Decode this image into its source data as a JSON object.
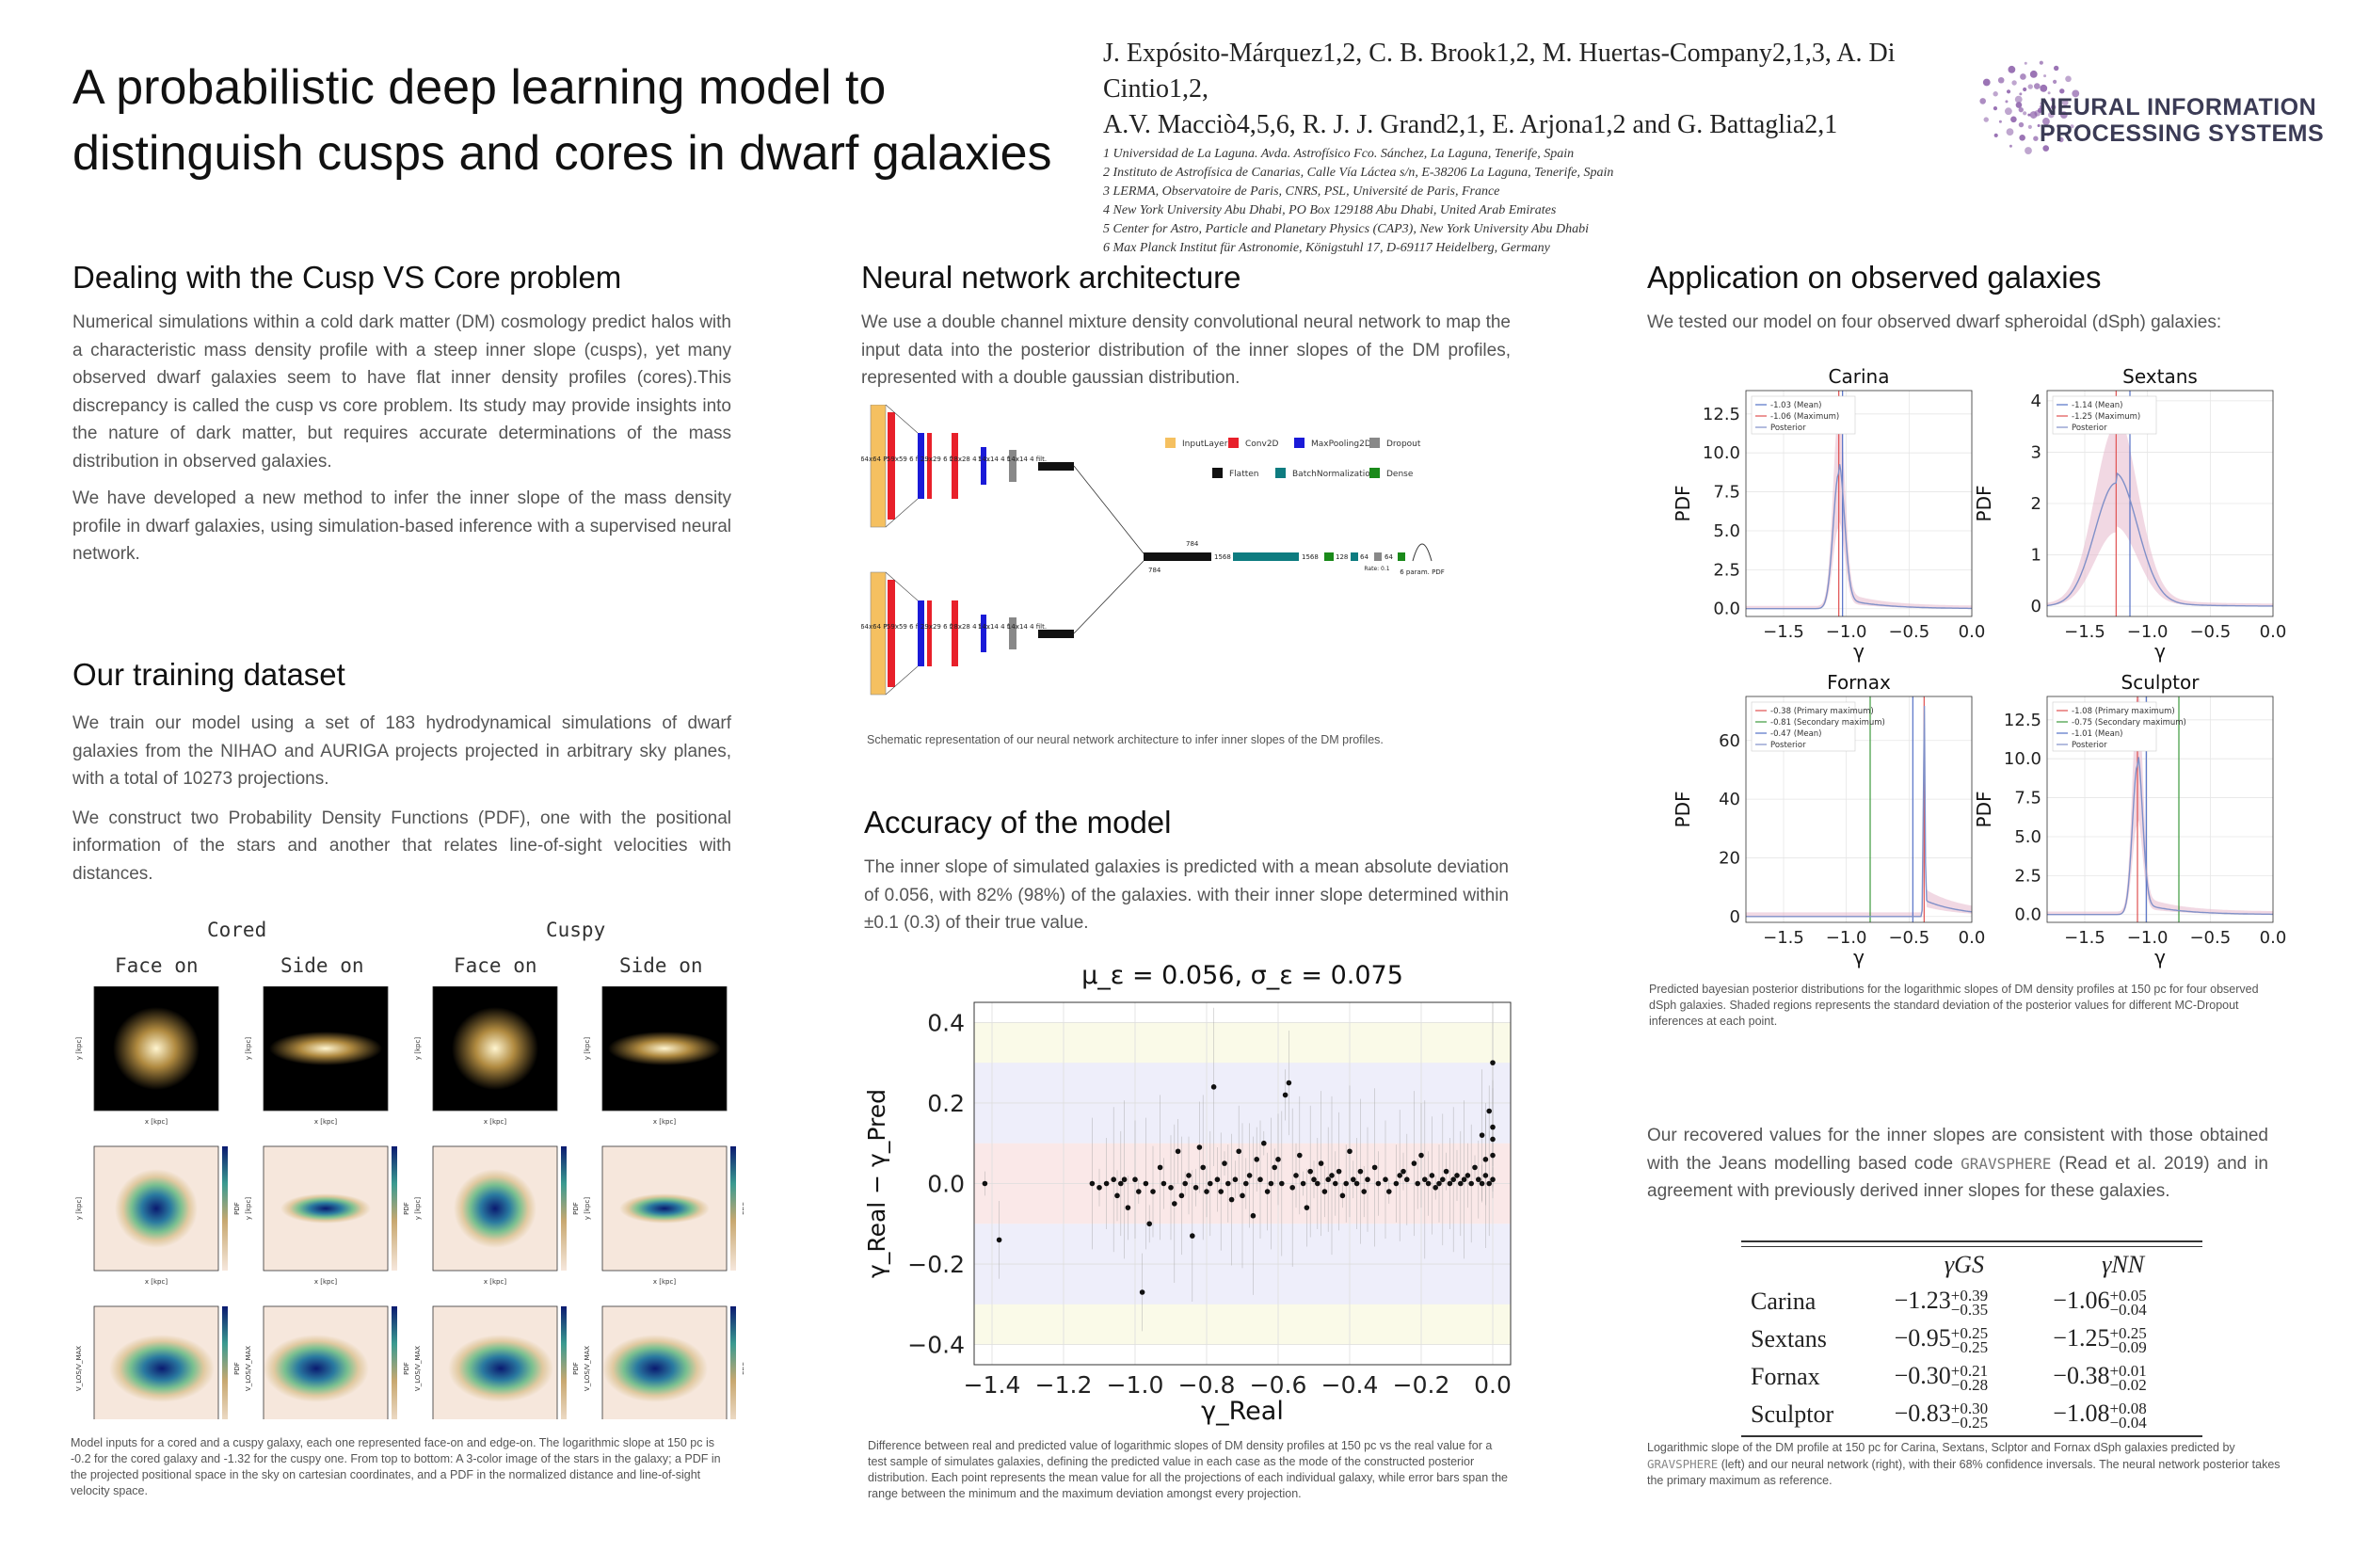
{
  "header": {
    "title_line1": "A probabilistic deep learning model to",
    "title_line2": "distinguish cusps and cores in dwarf galaxies",
    "authors_line1": "J. Expósito-Márquez1,2, C. B. Brook1,2, M. Huertas-Company2,1,3, A. Di Cintio1,2,",
    "authors_line2": "A.V. Macciò4,5,6, R. J. J. Grand2,1, E. Arjona1,2 and G. Battaglia2,1",
    "affiliations": [
      "1 Universidad de La Laguna. Avda. Astrofísico Fco. Sánchez, La Laguna, Tenerife, Spain",
      "2 Instituto de Astrofísica de Canarias, Calle Vía Láctea s/n, E-38206 La Laguna, Tenerife, Spain",
      "3 LERMA, Observatoire de Paris, CNRS, PSL, Université de Paris, France",
      "4 New York University Abu Dhabi, PO Box 129188 Abu Dhabi, United Arab Emirates",
      "5 Center for Astro, Particle and Planetary Physics (CAP3), New York University Abu Dhabi",
      "6 Max Planck Institut für Astronomie, Königstuhl 17, D-69117 Heidelberg, Germany"
    ],
    "logo_line1": "NEURAL INFORMATION",
    "logo_line2": "PROCESSING SYSTEMS",
    "logo_color": "#8a5ca8"
  },
  "cusp_core": {
    "heading": "Dealing with the Cusp VS Core problem",
    "p1": "Numerical simulations within a cold dark matter (DM) cosmology predict halos with a characteristic mass density profile with a steep inner slope (cusps), yet many observed dwarf galaxies seem to have flat inner density profiles (cores).This discrepancy is called the cusp vs core problem. Its study may provide insights into the nature of dark matter, but requires accurate determinations of the mass distribution in observed galaxies.",
    "p2": "We have developed a new method to infer the inner slope of the mass density profile in dwarf galaxies, using simulation-based inference with a supervised neural network."
  },
  "training": {
    "heading": "Our training dataset",
    "p1": "We train our model using a set of 183 hydrodynamical simulations of dwarf galaxies from the NIHAO and AURIGA projects projected in arbitrary sky planes, with a total of 10273 projections.",
    "p2": "We construct two Probability Density Functions (PDF), one with the positional information of the stars and another that relates line-of-sight velocities with distances.",
    "cored_label": "Cored",
    "cuspy_label": "Cuspy",
    "face_on": "Face on",
    "side_on": "Side on",
    "ylabel_pos": "y [kpc]",
    "xlabel_pos": "x [kpc]",
    "ylabel_vel": "V_LOS/V_MAX",
    "xlabel_vel": "R_proj/R_1/2",
    "cbar_label": "PDF",
    "caption": "Model inputs for a cored and a cuspy galaxy, each one represented face-on and edge-on. The logarithmic slope at 150 pc is -0.2 for the cored galaxy and -1.32 for the cuspy one. From top to bottom: A 3-color image of the stars in the galaxy; a PDF in the projected positional space in the sky on cartesian coordinates, and a PDF in the normalized distance and line-of-sight velocity space."
  },
  "architecture": {
    "heading": "Neural network architecture",
    "p1": "We use a double channel mixture density convolutional neural network to map the input data into the posterior distribution of the inner slopes of the DM profiles, represented with a double gaussian distribution.",
    "legend": [
      "InputLayer",
      "Conv2D",
      "MaxPooling2D",
      "Dropout",
      "Flatten",
      "BatchNormalization",
      "Dense"
    ],
    "legend_colors": [
      "#f5c060",
      "#e8202a",
      "#1a1ad8",
      "#888888",
      "#111111",
      "#0e7c80",
      "#1a8a1a"
    ],
    "block_input": "64x64 PDF",
    "block_conv1": "59x59 6 filt.",
    "block_conv2": "29x29 6 filt.",
    "block_conv3": "28x28 4 filt.",
    "block_conv4": "14x14 4 filt.",
    "block_conv5": "14x14 4 filt.",
    "flatten_784": "784",
    "dense_1568": "1568",
    "dense_128": "128",
    "dense_64": "64",
    "rate": "Rate: 0.1",
    "output_label": "6 param. PDF",
    "caption": "Schematic representation of our neural network architecture to infer inner slopes of the DM profiles."
  },
  "accuracy": {
    "heading": "Accuracy of the model",
    "p1": "The inner slope of simulated galaxies is predicted with a mean absolute deviation of  0.056, with 82% (98%) of the galaxies. with their inner slope determined within ±0.1 (0.3) of their true value.",
    "plot_title": "μ_ε = 0.056, σ_ε = 0.075",
    "xlabel": "γ_Real",
    "ylabel": "γ_Real − γ_Pred",
    "caption": "Difference between real and predicted value of logarithmic slopes of DM density profiles at 150 pc vs the real value for a test sample of simulates galaxies, defining the predicted value in each case as the mode of the constructed posterior distribution. Each point represents the mean value for all the projections of each individual galaxy, while error bars span the range between the minimum and the maximum deviation amongst every projection."
  },
  "application": {
    "heading": "Application on observed galaxies",
    "p1": "We tested our model on four observed dwarf spheroidal (dSph) galaxies:",
    "caption": "Predicted bayesian posterior distributions  for the logarithmic slopes of DM density profiles at 150 pc for four observed dSph galaxies. Shaded regions represents the standard deviation of the posterior values for different MC-Dropout inferences at each point.",
    "p2_part1": "Our recovered values for the inner slopes are consistent with those obtained with the Jeans modelling based code ",
    "code_name": "GRAVSPHERE",
    "p2_part2": " (Read et al. 2019) and in agreement with previously derived inner slopes for these galaxies.",
    "table_col1": "γGS",
    "table_col2": "γNN",
    "table_caption_part1": "Logarithmic slope of the DM profile at 150 pc for Carina, Sextans, Sclptor and Fornax dSph galaxies predicted by ",
    "table_caption_part2": " (left) and our neural network (right), with their 68% confidence inversals. The neural network posterior takes the primary maximum as reference."
  },
  "chart_data": [
    {
      "type": "scatter",
      "title": "μ_ε = 0.056, σ_ε = 0.075",
      "xlabel": "γ_Real",
      "ylabel": "γ_Real − γ_Pred",
      "xlim": [
        -1.45,
        0.05
      ],
      "ylim": [
        -0.45,
        0.45
      ],
      "xticks": [
        "−1.4",
        "−1.2",
        "−1.0",
        "−0.8",
        "−0.6",
        "−0.4",
        "−0.2",
        "0.0"
      ],
      "yticks": [
        "−0.4",
        "−0.2",
        "0.0",
        "0.2",
        "0.4"
      ],
      "bands": [
        {
          "from": -0.1,
          "to": 0.1,
          "color": "#f6d6d6"
        },
        {
          "from": 0.1,
          "to": 0.3,
          "color": "#e0e0f6"
        },
        {
          "from": -0.3,
          "to": -0.1,
          "color": "#e0e0f6"
        },
        {
          "from": 0.3,
          "to": 0.4,
          "color": "#f6f6d6"
        },
        {
          "from": -0.4,
          "to": -0.3,
          "color": "#f6f6d6"
        }
      ],
      "points": [
        [
          -1.42,
          0.0
        ],
        [
          -1.38,
          -0.14
        ],
        [
          -1.12,
          0.0
        ],
        [
          -1.1,
          -0.01
        ],
        [
          -1.08,
          0.0
        ],
        [
          -1.06,
          0.01
        ],
        [
          -1.05,
          -0.03
        ],
        [
          -1.04,
          0.0
        ],
        [
          -1.03,
          0.01
        ],
        [
          -1.02,
          -0.06
        ],
        [
          -1.0,
          0.01
        ],
        [
          -0.99,
          -0.02
        ],
        [
          -0.98,
          -0.27
        ],
        [
          -0.97,
          0.0
        ],
        [
          -0.96,
          -0.1
        ],
        [
          -0.95,
          -0.02
        ],
        [
          -0.93,
          0.04
        ],
        [
          -0.92,
          0.0
        ],
        [
          -0.9,
          -0.01
        ],
        [
          -0.89,
          -0.05
        ],
        [
          -0.88,
          0.08
        ],
        [
          -0.87,
          -0.03
        ],
        [
          -0.86,
          0.0
        ],
        [
          -0.85,
          0.02
        ],
        [
          -0.84,
          -0.13
        ],
        [
          -0.83,
          -0.01
        ],
        [
          -0.82,
          0.09
        ],
        [
          -0.81,
          0.04
        ],
        [
          -0.8,
          -0.02
        ],
        [
          -0.79,
          0.0
        ],
        [
          -0.78,
          0.24
        ],
        [
          -0.77,
          0.01
        ],
        [
          -0.76,
          -0.02
        ],
        [
          -0.75,
          0.05
        ],
        [
          -0.74,
          0.0
        ],
        [
          -0.73,
          -0.04
        ],
        [
          -0.72,
          0.01
        ],
        [
          -0.71,
          0.08
        ],
        [
          -0.7,
          -0.03
        ],
        [
          -0.69,
          0.0
        ],
        [
          -0.68,
          0.02
        ],
        [
          -0.67,
          -0.08
        ],
        [
          -0.66,
          0.06
        ],
        [
          -0.65,
          0.01
        ],
        [
          -0.64,
          0.1
        ],
        [
          -0.63,
          -0.02
        ],
        [
          -0.62,
          0.0
        ],
        [
          -0.61,
          0.04
        ],
        [
          -0.6,
          0.06
        ],
        [
          -0.59,
          0.0
        ],
        [
          -0.58,
          0.22
        ],
        [
          -0.57,
          0.25
        ],
        [
          -0.56,
          -0.01
        ],
        [
          -0.55,
          0.02
        ],
        [
          -0.54,
          0.07
        ],
        [
          -0.53,
          0.0
        ],
        [
          -0.52,
          -0.06
        ],
        [
          -0.51,
          0.03
        ],
        [
          -0.5,
          0.01
        ],
        [
          -0.49,
          0.0
        ],
        [
          -0.48,
          0.05
        ],
        [
          -0.47,
          -0.02
        ],
        [
          -0.46,
          0.01
        ],
        [
          -0.45,
          0.02
        ],
        [
          -0.44,
          0.0
        ],
        [
          -0.43,
          0.03
        ],
        [
          -0.42,
          -0.03
        ],
        [
          -0.41,
          0.0
        ],
        [
          -0.4,
          0.08
        ],
        [
          -0.39,
          0.01
        ],
        [
          -0.38,
          0.0
        ],
        [
          -0.37,
          0.03
        ],
        [
          -0.36,
          -0.02
        ],
        [
          -0.35,
          0.01
        ],
        [
          -0.33,
          0.04
        ],
        [
          -0.32,
          0.0
        ],
        [
          -0.3,
          0.01
        ],
        [
          -0.29,
          -0.02
        ],
        [
          -0.27,
          0.0
        ],
        [
          -0.26,
          0.02
        ],
        [
          -0.25,
          0.03
        ],
        [
          -0.24,
          0.01
        ],
        [
          -0.22,
          0.05
        ],
        [
          -0.21,
          0.0
        ],
        [
          -0.2,
          0.07
        ],
        [
          -0.19,
          0.01
        ],
        [
          -0.18,
          0.0
        ],
        [
          -0.17,
          0.02
        ],
        [
          -0.16,
          -0.01
        ],
        [
          -0.15,
          0.0
        ],
        [
          -0.14,
          0.01
        ],
        [
          -0.13,
          0.03
        ],
        [
          -0.12,
          0.0
        ],
        [
          -0.11,
          0.01
        ],
        [
          -0.1,
          0.02
        ],
        [
          -0.09,
          0.0
        ],
        [
          -0.08,
          0.01
        ],
        [
          -0.07,
          0.02
        ],
        [
          -0.06,
          0.0
        ],
        [
          -0.05,
          0.04
        ],
        [
          -0.04,
          0.01
        ],
        [
          -0.03,
          0.12
        ],
        [
          -0.03,
          0.0
        ],
        [
          -0.02,
          0.06
        ],
        [
          -0.02,
          0.02
        ],
        [
          -0.01,
          0.18
        ],
        [
          -0.01,
          0.0
        ],
        [
          0.0,
          0.3
        ],
        [
          0.0,
          0.07
        ],
        [
          0.0,
          0.11
        ],
        [
          0.0,
          0.01
        ],
        [
          0.0,
          0.14
        ]
      ]
    },
    {
      "type": "line",
      "title": "Carina",
      "xlabel": "γ",
      "ylabel": "PDF",
      "xlim": [
        -1.8,
        0.0
      ],
      "ylim": [
        -0.5,
        14.0
      ],
      "xticks": [
        "−1.5",
        "−1.0",
        "−0.5",
        "0.0"
      ],
      "yticks": [
        "0.0",
        "2.5",
        "5.0",
        "7.5",
        "10.0",
        "12.5"
      ],
      "legend": [
        "-1.03 (Mean)",
        "-1.06 (Maximum)",
        "Posterior"
      ],
      "vlines": [
        {
          "x": -1.03,
          "color": "#5470c6"
        },
        {
          "x": -1.06,
          "color": "#e05050"
        }
      ],
      "posterior": {
        "mu": -1.06,
        "sigma": 0.045,
        "peak": 8.7
      }
    },
    {
      "type": "line",
      "title": "Sextans",
      "xlabel": "γ",
      "ylabel": "PDF",
      "xlim": [
        -1.8,
        0.0
      ],
      "ylim": [
        -0.2,
        4.2
      ],
      "xticks": [
        "−1.5",
        "−1.0",
        "−0.5",
        "0.0"
      ],
      "yticks": [
        "0",
        "1",
        "2",
        "3",
        "4"
      ],
      "legend": [
        "-1.14 (Mean)",
        "-1.25 (Maximum)",
        "Posterior"
      ],
      "vlines": [
        {
          "x": -1.14,
          "color": "#5470c6"
        },
        {
          "x": -1.25,
          "color": "#e05050"
        }
      ],
      "posterior": {
        "mu": -1.25,
        "sigma": 0.17,
        "peak": 2.4
      }
    },
    {
      "type": "line",
      "title": "Fornax",
      "xlabel": "γ",
      "ylabel": "PDF",
      "xlim": [
        -1.8,
        0.0
      ],
      "ylim": [
        -2,
        75
      ],
      "xticks": [
        "−1.5",
        "−1.0",
        "−0.5",
        "0.0"
      ],
      "yticks": [
        "0",
        "20",
        "40",
        "60"
      ],
      "legend": [
        "-0.38 (Primary maximum)",
        "-0.81 (Secondary maximum)",
        "-0.47 (Mean)",
        "Posterior"
      ],
      "vlines": [
        {
          "x": -0.38,
          "color": "#e05050"
        },
        {
          "x": -0.81,
          "color": "#3c9a3c"
        },
        {
          "x": -0.47,
          "color": "#5470c6"
        }
      ],
      "posterior": {
        "mu": -0.38,
        "sigma": 0.006,
        "peak": 70
      }
    },
    {
      "type": "line",
      "title": "Sculptor",
      "xlabel": "γ",
      "ylabel": "PDF",
      "xlim": [
        -1.8,
        0.0
      ],
      "ylim": [
        -0.5,
        14.0
      ],
      "xticks": [
        "−1.5",
        "−1.0",
        "−0.5",
        "0.0"
      ],
      "yticks": [
        "0.0",
        "2.5",
        "5.0",
        "7.5",
        "10.0",
        "12.5"
      ],
      "legend": [
        "-1.08 (Primary maximum)",
        "-0.75 (Secondary maximum)",
        "-1.01 (Mean)",
        "Posterior"
      ],
      "vlines": [
        {
          "x": -1.08,
          "color": "#e05050"
        },
        {
          "x": -0.75,
          "color": "#3c9a3c"
        },
        {
          "x": -1.01,
          "color": "#5470c6"
        }
      ],
      "posterior": {
        "mu": -1.08,
        "sigma": 0.04,
        "peak": 9.6
      }
    },
    {
      "type": "table",
      "columns": [
        "",
        "γGS",
        "γNN"
      ],
      "rows": [
        {
          "name": "Carina",
          "gs": "−1.23",
          "gs_up": "+0.39",
          "gs_dn": "−0.35",
          "nn": "−1.06",
          "nn_up": "+0.05",
          "nn_dn": "−0.04"
        },
        {
          "name": "Sextans",
          "gs": "−0.95",
          "gs_up": "+0.25",
          "gs_dn": "−0.25",
          "nn": "−1.25",
          "nn_up": "+0.25",
          "nn_dn": "−0.09"
        },
        {
          "name": "Fornax",
          "gs": "−0.30",
          "gs_up": "+0.21",
          "gs_dn": "−0.28",
          "nn": "−0.38",
          "nn_up": "+0.01",
          "nn_dn": "−0.02"
        },
        {
          "name": "Sculptor",
          "gs": "−0.83",
          "gs_up": "+0.30",
          "gs_dn": "−0.25",
          "nn": "−1.08",
          "nn_up": "+0.08",
          "nn_dn": "−0.04"
        }
      ]
    }
  ]
}
